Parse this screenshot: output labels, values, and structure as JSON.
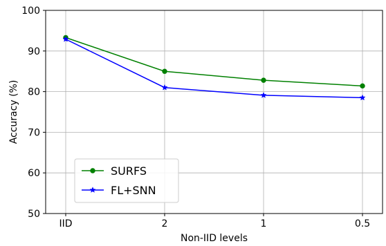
{
  "chart_data": {
    "type": "line",
    "title": "",
    "xlabel": "Non-IID levels",
    "ylabel": "Accuracy (%)",
    "categories": [
      "IID",
      "2",
      "1",
      "0.5"
    ],
    "yticks": [
      50,
      60,
      70,
      80,
      90,
      100
    ],
    "ylim": [
      50,
      100
    ],
    "grid": true,
    "legend_position": "lower-left",
    "series": [
      {
        "name": "SURFS",
        "values": [
          93.3,
          85.0,
          82.8,
          81.4
        ],
        "color": "#008000",
        "marker": "circle"
      },
      {
        "name": "FL+SNN",
        "values": [
          92.9,
          81.0,
          79.1,
          78.5
        ],
        "color": "#0000ff",
        "marker": "star"
      }
    ]
  }
}
